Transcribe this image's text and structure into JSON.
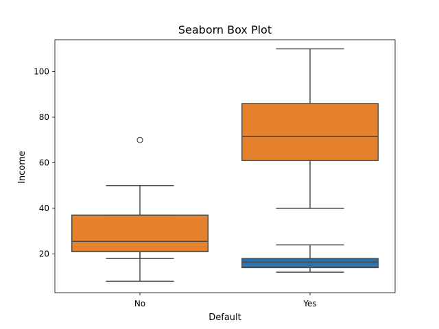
{
  "chart_data": {
    "type": "box",
    "title": "Seaborn Box Plot",
    "xlabel": "Default",
    "ylabel": "Income",
    "categories": [
      "No",
      "Yes"
    ],
    "ylim": [
      3,
      114
    ],
    "yticks": [
      20,
      40,
      60,
      80,
      100
    ],
    "grid": false,
    "legend": "none",
    "boxes": [
      {
        "category": "No",
        "color": "#e6822e",
        "whisker_low": 18,
        "q1": 21,
        "median": 32,
        "q3": 37,
        "whisker_high": 50,
        "outliers": [
          70
        ],
        "offset": 0
      },
      {
        "category": "No",
        "color": "#e6822e",
        "whisker_low": 8,
        "q1": 21,
        "median": 25.5,
        "q3": 37,
        "whisker_high": 37,
        "outliers": [],
        "offset": 0
      },
      {
        "category": "Yes",
        "color": "#e6822e",
        "whisker_low": 40,
        "q1": 61,
        "median": 71.5,
        "q3": 86,
        "whisker_high": 110,
        "outliers": [],
        "offset": 0
      },
      {
        "category": "Yes",
        "color": "#2f72ab",
        "whisker_low": 12,
        "q1": 14,
        "median": 16.5,
        "q3": 18,
        "whisker_high": 24,
        "outliers": [],
        "offset": 0
      }
    ]
  }
}
